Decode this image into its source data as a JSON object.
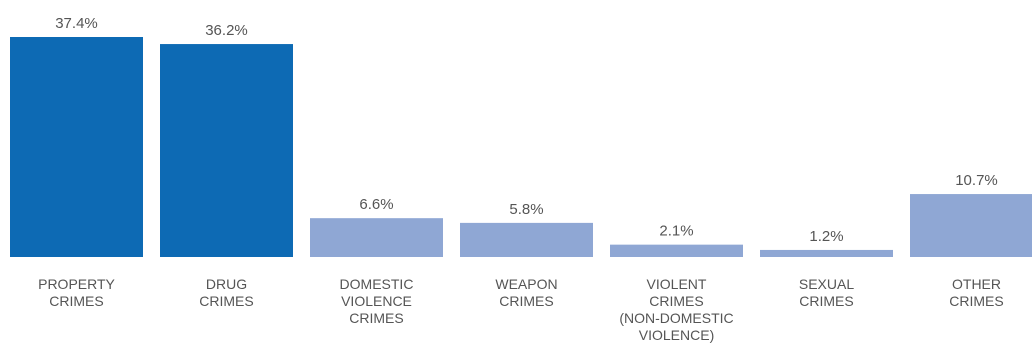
{
  "chart_data": {
    "type": "bar",
    "categories": [
      [
        "PROPERTY",
        "CRIMES"
      ],
      [
        "DRUG",
        "CRIMES"
      ],
      [
        "DOMESTIC",
        "VIOLENCE",
        "CRIMES"
      ],
      [
        "WEAPON",
        "CRIMES"
      ],
      [
        "VIOLENT",
        "CRIMES",
        "(NON-DOMESTIC",
        "VIOLENCE)"
      ],
      [
        "SEXUAL",
        "CRIMES"
      ],
      [
        "OTHER",
        "CRIMES"
      ]
    ],
    "values": [
      37.4,
      36.2,
      6.6,
      5.8,
      2.1,
      1.2,
      10.7
    ],
    "value_labels": [
      "37.4%",
      "36.2%",
      "6.6%",
      "5.8%",
      "2.1%",
      "1.2%",
      "10.7%"
    ],
    "colors": [
      "#0d6ab4",
      "#0d6ab4",
      "#8fa7d4",
      "#8fa7d4",
      "#8fa7d4",
      "#8fa7d4",
      "#8fa7d4"
    ],
    "title": "",
    "xlabel": "",
    "ylabel": "",
    "ylim": [
      0,
      37.4
    ],
    "grid": false,
    "legend": "none"
  }
}
